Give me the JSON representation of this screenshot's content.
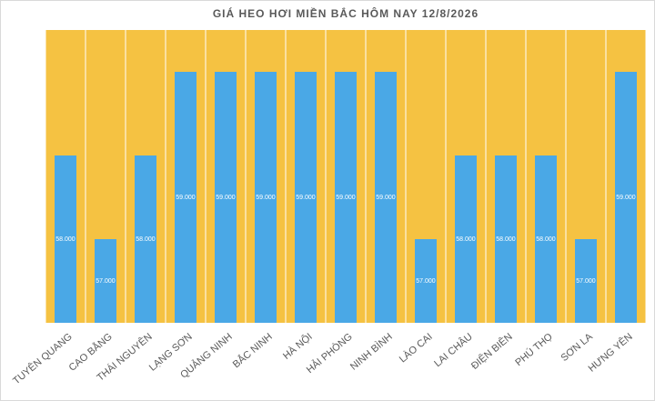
{
  "chart_data": {
    "type": "bar",
    "title": "GIÁ HEO HƠI MIỀN BẮC HÔM NAY 12/8/2026",
    "categories": [
      "TUYÊN QUANG",
      "CAO BẰNG",
      "THÁI NGUYÊN",
      "LẠNG SƠN",
      "QUẢNG NINH",
      "BẮC NINH",
      "HÀ NỘI",
      "HẢI PHÒNG",
      "NINH BÌNH",
      "LÀO CAI",
      "LAI CHÂU",
      "ĐIỆN BIÊN",
      "PHÚ THỌ",
      "SƠN LA",
      "HƯNG YÊN"
    ],
    "values": [
      58000,
      57000,
      58000,
      59000,
      59000,
      59000,
      59000,
      59000,
      59000,
      57000,
      58000,
      58000,
      58000,
      57000,
      59000
    ],
    "value_labels": [
      "58.000",
      "57.000",
      "58.000",
      "59.000",
      "59.000",
      "59.000",
      "59.000",
      "59.000",
      "59.000",
      "57.000",
      "58.000",
      "58.000",
      "58.000",
      "57.000",
      "59.000"
    ],
    "color": "#4aa8e6",
    "background_color": "#f5c242",
    "ylim": [
      56000,
      59500
    ]
  }
}
